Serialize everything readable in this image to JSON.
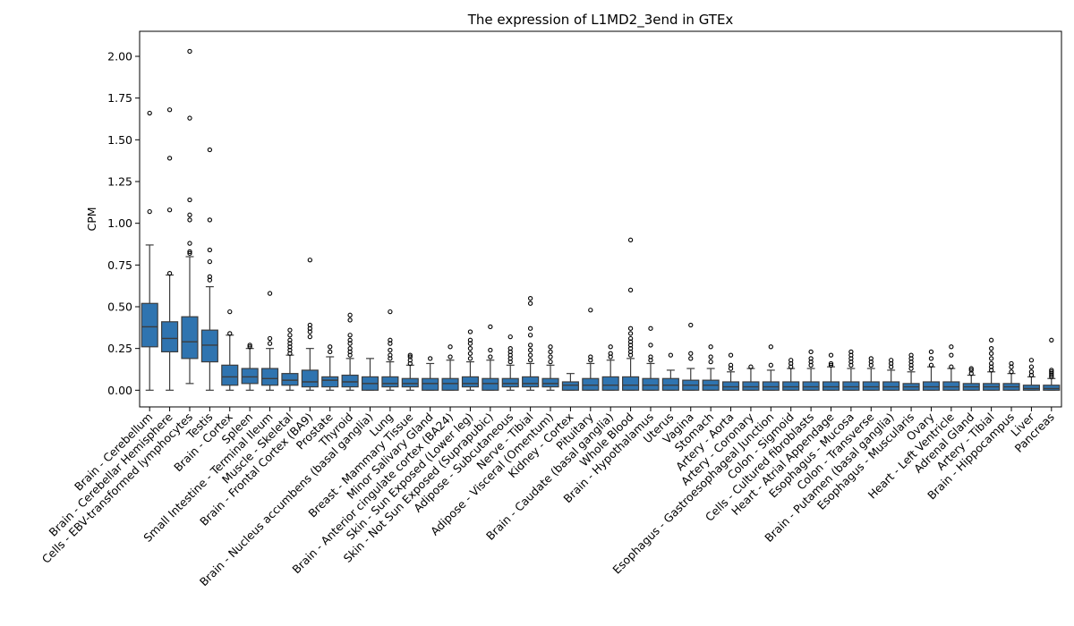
{
  "chart_data": {
    "type": "box",
    "title": "The expression of L1MD2_3end in GTEx",
    "xlabel": "",
    "ylabel": "CPM",
    "ylim": [
      -0.1,
      2.15
    ],
    "yticks": [
      0.0,
      0.25,
      0.5,
      0.75,
      1.0,
      1.25,
      1.5,
      1.75,
      2.0
    ],
    "ytick_labels": [
      "0.00",
      "0.25",
      "0.50",
      "0.75",
      "1.00",
      "1.25",
      "1.50",
      "1.75",
      "2.00"
    ],
    "box_color": "#2f74b0",
    "categories": [
      "Brain - Cerebellum",
      "Brain - Cerebellar Hemisphere",
      "Cells - EBV-transformed lymphocytes",
      "Testis",
      "Brain - Cortex",
      "Spleen",
      "Small Intestine - Terminal Ileum",
      "Muscle - Skeletal",
      "Brain - Frontal Cortex (BA9)",
      "Prostate",
      "Thyroid",
      "Brain - Nucleus accumbens (basal ganglia)",
      "Lung",
      "Breast - Mammary Tissue",
      "Minor Salivary Gland",
      "Brain - Anterior cingulate cortex (BA24)",
      "Skin - Sun Exposed (Lower leg)",
      "Skin - Not Sun Exposed (Suprapubic)",
      "Adipose - Subcutaneous",
      "Nerve - Tibial",
      "Adipose - Visceral (Omentum)",
      "Kidney - Cortex",
      "Pituitary",
      "Brain - Caudate (basal ganglia)",
      "Whole Blood",
      "Brain - Hypothalamus",
      "Uterus",
      "Vagina",
      "Stomach",
      "Artery - Aorta",
      "Artery - Coronary",
      "Esophagus - Gastroesophageal Junction",
      "Colon - Sigmoid",
      "Cells - Cultured fibroblasts",
      "Heart - Atrial Appendage",
      "Esophagus - Mucosa",
      "Colon - Transverse",
      "Brain - Putamen (basal ganglia)",
      "Esophagus - Muscularis",
      "Ovary",
      "Heart - Left Ventricle",
      "Adrenal Gland",
      "Artery - Tibial",
      "Brain - Hippocampus",
      "Liver",
      "Pancreas"
    ],
    "boxes": [
      {
        "q1": 0.26,
        "median": 0.38,
        "q3": 0.52,
        "lo": 0.0,
        "hi": 0.87,
        "fliers": [
          1.07,
          1.66
        ]
      },
      {
        "q1": 0.23,
        "median": 0.31,
        "q3": 0.41,
        "lo": 0.0,
        "hi": 0.69,
        "fliers": [
          0.7,
          1.08,
          1.39,
          1.68
        ]
      },
      {
        "q1": 0.19,
        "median": 0.29,
        "q3": 0.44,
        "lo": 0.04,
        "hi": 0.8,
        "fliers": [
          0.82,
          0.83,
          0.88,
          1.02,
          1.05,
          1.14,
          1.63,
          2.03
        ]
      },
      {
        "q1": 0.17,
        "median": 0.27,
        "q3": 0.36,
        "lo": 0.0,
        "hi": 0.62,
        "fliers": [
          0.66,
          0.68,
          0.77,
          0.84,
          1.02,
          1.44
        ]
      },
      {
        "q1": 0.03,
        "median": 0.08,
        "q3": 0.15,
        "lo": 0.0,
        "hi": 0.33,
        "fliers": [
          0.34,
          0.47
        ]
      },
      {
        "q1": 0.04,
        "median": 0.08,
        "q3": 0.13,
        "lo": 0.0,
        "hi": 0.25,
        "fliers": [
          0.26,
          0.27
        ]
      },
      {
        "q1": 0.03,
        "median": 0.07,
        "q3": 0.13,
        "lo": 0.0,
        "hi": 0.25,
        "fliers": [
          0.28,
          0.31,
          0.58
        ]
      },
      {
        "q1": 0.03,
        "median": 0.06,
        "q3": 0.1,
        "lo": 0.0,
        "hi": 0.21,
        "fliers": [
          0.22,
          0.24,
          0.26,
          0.28,
          0.3,
          0.33,
          0.36
        ]
      },
      {
        "q1": 0.02,
        "median": 0.05,
        "q3": 0.12,
        "lo": 0.0,
        "hi": 0.25,
        "fliers": [
          0.32,
          0.35,
          0.37,
          0.39,
          0.78
        ]
      },
      {
        "q1": 0.02,
        "median": 0.06,
        "q3": 0.08,
        "lo": 0.0,
        "hi": 0.2,
        "fliers": [
          0.23,
          0.26
        ]
      },
      {
        "q1": 0.02,
        "median": 0.05,
        "q3": 0.09,
        "lo": 0.0,
        "hi": 0.19,
        "fliers": [
          0.21,
          0.23,
          0.25,
          0.28,
          0.3,
          0.33,
          0.42,
          0.45
        ]
      },
      {
        "q1": 0.0,
        "median": 0.04,
        "q3": 0.08,
        "lo": 0.0,
        "hi": 0.19,
        "fliers": []
      },
      {
        "q1": 0.02,
        "median": 0.04,
        "q3": 0.08,
        "lo": 0.0,
        "hi": 0.17,
        "fliers": [
          0.19,
          0.21,
          0.24,
          0.28,
          0.3,
          0.47
        ]
      },
      {
        "q1": 0.02,
        "median": 0.04,
        "q3": 0.07,
        "lo": 0.0,
        "hi": 0.15,
        "fliers": [
          0.16,
          0.18,
          0.2,
          0.21
        ]
      },
      {
        "q1": 0.0,
        "median": 0.04,
        "q3": 0.07,
        "lo": 0.0,
        "hi": 0.16,
        "fliers": [
          0.19
        ]
      },
      {
        "q1": 0.0,
        "median": 0.04,
        "q3": 0.07,
        "lo": 0.0,
        "hi": 0.18,
        "fliers": [
          0.2,
          0.26
        ]
      },
      {
        "q1": 0.02,
        "median": 0.04,
        "q3": 0.08,
        "lo": 0.0,
        "hi": 0.17,
        "fliers": [
          0.19,
          0.22,
          0.25,
          0.28,
          0.3,
          0.35
        ]
      },
      {
        "q1": 0.0,
        "median": 0.04,
        "q3": 0.07,
        "lo": 0.0,
        "hi": 0.18,
        "fliers": [
          0.2,
          0.24,
          0.38
        ]
      },
      {
        "q1": 0.02,
        "median": 0.04,
        "q3": 0.07,
        "lo": 0.0,
        "hi": 0.15,
        "fliers": [
          0.17,
          0.19,
          0.21,
          0.23,
          0.25,
          0.32
        ]
      },
      {
        "q1": 0.02,
        "median": 0.04,
        "q3": 0.08,
        "lo": 0.0,
        "hi": 0.16,
        "fliers": [
          0.18,
          0.21,
          0.24,
          0.27,
          0.33,
          0.37,
          0.52,
          0.55
        ]
      },
      {
        "q1": 0.02,
        "median": 0.04,
        "q3": 0.07,
        "lo": 0.0,
        "hi": 0.15,
        "fliers": [
          0.17,
          0.2,
          0.23,
          0.26
        ]
      },
      {
        "q1": 0.0,
        "median": 0.03,
        "q3": 0.05,
        "lo": 0.0,
        "hi": 0.1,
        "fliers": []
      },
      {
        "q1": 0.0,
        "median": 0.03,
        "q3": 0.07,
        "lo": 0.0,
        "hi": 0.16,
        "fliers": [
          0.18,
          0.2,
          0.48
        ]
      },
      {
        "q1": 0.0,
        "median": 0.03,
        "q3": 0.08,
        "lo": 0.0,
        "hi": 0.18,
        "fliers": [
          0.2,
          0.22,
          0.26
        ]
      },
      {
        "q1": 0.0,
        "median": 0.03,
        "q3": 0.08,
        "lo": 0.0,
        "hi": 0.19,
        "fliers": [
          0.21,
          0.23,
          0.25,
          0.27,
          0.29,
          0.31,
          0.34,
          0.37,
          0.6,
          0.9
        ]
      },
      {
        "q1": 0.0,
        "median": 0.03,
        "q3": 0.07,
        "lo": 0.0,
        "hi": 0.16,
        "fliers": [
          0.18,
          0.2,
          0.27,
          0.37
        ]
      },
      {
        "q1": 0.0,
        "median": 0.03,
        "q3": 0.07,
        "lo": 0.0,
        "hi": 0.12,
        "fliers": [
          0.21
        ]
      },
      {
        "q1": 0.0,
        "median": 0.03,
        "q3": 0.06,
        "lo": 0.0,
        "hi": 0.13,
        "fliers": [
          0.19,
          0.22,
          0.39
        ]
      },
      {
        "q1": 0.0,
        "median": 0.03,
        "q3": 0.06,
        "lo": 0.0,
        "hi": 0.13,
        "fliers": [
          0.17,
          0.2,
          0.26
        ]
      },
      {
        "q1": 0.0,
        "median": 0.02,
        "q3": 0.05,
        "lo": 0.0,
        "hi": 0.11,
        "fliers": [
          0.13,
          0.15,
          0.21
        ]
      },
      {
        "q1": 0.0,
        "median": 0.02,
        "q3": 0.05,
        "lo": 0.0,
        "hi": 0.13,
        "fliers": [
          0.14
        ]
      },
      {
        "q1": 0.0,
        "median": 0.02,
        "q3": 0.05,
        "lo": 0.0,
        "hi": 0.12,
        "fliers": [
          0.15,
          0.26
        ]
      },
      {
        "q1": 0.0,
        "median": 0.02,
        "q3": 0.05,
        "lo": 0.0,
        "hi": 0.13,
        "fliers": [
          0.14,
          0.16,
          0.18
        ]
      },
      {
        "q1": 0.0,
        "median": 0.02,
        "q3": 0.05,
        "lo": 0.0,
        "hi": 0.13,
        "fliers": [
          0.15,
          0.17,
          0.19,
          0.23
        ]
      },
      {
        "q1": 0.0,
        "median": 0.02,
        "q3": 0.05,
        "lo": 0.0,
        "hi": 0.14,
        "fliers": [
          0.15,
          0.16,
          0.21
        ]
      },
      {
        "q1": 0.0,
        "median": 0.02,
        "q3": 0.05,
        "lo": 0.0,
        "hi": 0.13,
        "fliers": [
          0.15,
          0.17,
          0.19,
          0.21,
          0.23
        ]
      },
      {
        "q1": 0.0,
        "median": 0.02,
        "q3": 0.05,
        "lo": 0.0,
        "hi": 0.13,
        "fliers": [
          0.15,
          0.17,
          0.19
        ]
      },
      {
        "q1": 0.0,
        "median": 0.02,
        "q3": 0.05,
        "lo": 0.0,
        "hi": 0.12,
        "fliers": [
          0.14,
          0.16,
          0.18
        ]
      },
      {
        "q1": 0.0,
        "median": 0.02,
        "q3": 0.04,
        "lo": 0.0,
        "hi": 0.11,
        "fliers": [
          0.13,
          0.15,
          0.17,
          0.19,
          0.21
        ]
      },
      {
        "q1": 0.0,
        "median": 0.02,
        "q3": 0.05,
        "lo": 0.0,
        "hi": 0.14,
        "fliers": [
          0.15,
          0.19,
          0.23
        ]
      },
      {
        "q1": 0.0,
        "median": 0.02,
        "q3": 0.05,
        "lo": 0.0,
        "hi": 0.13,
        "fliers": [
          0.14,
          0.21,
          0.26
        ]
      },
      {
        "q1": 0.0,
        "median": 0.02,
        "q3": 0.04,
        "lo": 0.0,
        "hi": 0.09,
        "fliers": [
          0.1,
          0.12,
          0.13
        ]
      },
      {
        "q1": 0.0,
        "median": 0.02,
        "q3": 0.04,
        "lo": 0.0,
        "hi": 0.11,
        "fliers": [
          0.12,
          0.14,
          0.16,
          0.19,
          0.22,
          0.25,
          0.3
        ]
      },
      {
        "q1": 0.0,
        "median": 0.02,
        "q3": 0.04,
        "lo": 0.0,
        "hi": 0.1,
        "fliers": [
          0.11,
          0.14,
          0.16
        ]
      },
      {
        "q1": 0.0,
        "median": 0.01,
        "q3": 0.03,
        "lo": 0.0,
        "hi": 0.08,
        "fliers": [
          0.09,
          0.11,
          0.14,
          0.18
        ]
      },
      {
        "q1": 0.0,
        "median": 0.01,
        "q3": 0.03,
        "lo": 0.0,
        "hi": 0.07,
        "fliers": [
          0.08,
          0.09,
          0.1,
          0.11,
          0.12,
          0.3
        ]
      }
    ]
  }
}
